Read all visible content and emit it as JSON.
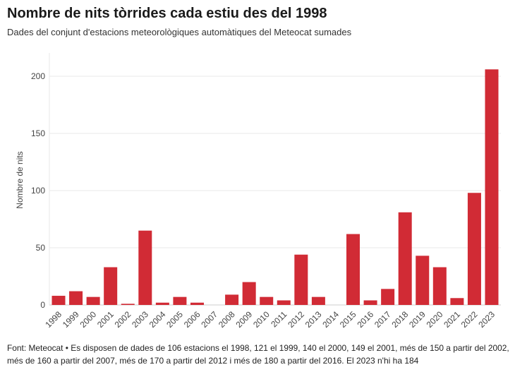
{
  "chart_data": {
    "type": "bar",
    "title": "Nombre de nits tòrrides cada estiu des del 1998",
    "subtitle": "Dades del conjunt d'estacions meteorològiques automàtiques del Meteocat sumades",
    "xlabel": "",
    "ylabel": "Nombre de nits",
    "ylim": [
      0,
      220
    ],
    "yticks": [
      0,
      50,
      100,
      150,
      200
    ],
    "grid": true,
    "color": "#d12b35",
    "categories": [
      "1998",
      "1999",
      "2000",
      "2001",
      "2002",
      "2003",
      "2004",
      "2005",
      "2006",
      "2007",
      "2008",
      "2009",
      "2010",
      "2011",
      "2012",
      "2013",
      "2014",
      "2015",
      "2016",
      "2017",
      "2018",
      "2019",
      "2020",
      "2021",
      "2022",
      "2023"
    ],
    "values": [
      8,
      12,
      7,
      33,
      1,
      65,
      2,
      7,
      2,
      0,
      9,
      20,
      7,
      4,
      44,
      7,
      0,
      62,
      4,
      14,
      81,
      43,
      33,
      6,
      98,
      206
    ]
  },
  "footer": {
    "line1": "Font: Meteocat • Es disposen de dades de 106 estacions el 1998, 121 el 1999, 140 el 2000, 149 el 2001, més de 150 a partir del 2002,",
    "line2": "més de 160 a partir del 2007, més de 170 a partir del 2012 i més de 180 a partir del 2016. El 2023 n'hi ha 184"
  }
}
